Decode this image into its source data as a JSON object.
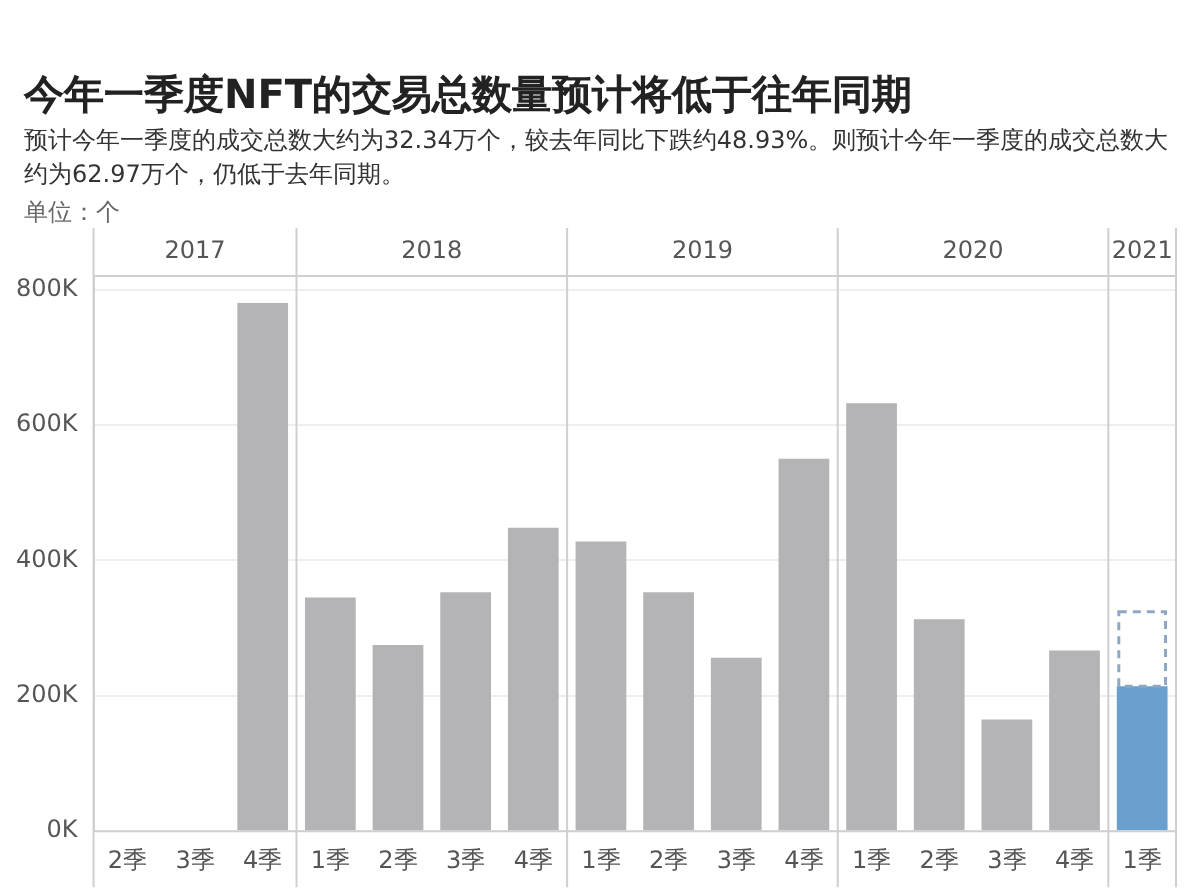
{
  "chart_data": {
    "type": "bar",
    "title": "今年一季度NFT的交易总数量预计将低于往年同期",
    "subtitle": "预计今年一季度的成交总数大约为32.34万个，较去年同比下跌约48.93%。则预计今年一季度的成交总数大约为62.97万个，仍低于去年同期。",
    "ylabel": "单位：个",
    "categories": [
      "2季",
      "3季",
      "4季",
      "1季",
      "2季",
      "3季",
      "4季",
      "1季",
      "2季",
      "3季",
      "4季",
      "1季",
      "2季",
      "3季",
      "4季",
      "1季"
    ],
    "annotations": [
      "2017",
      "2018",
      "2019",
      "2020",
      "2021"
    ],
    "stacked": true,
    "series": [
      {
        "colors": [
          "#b4b4b6",
          "#b4b4b6",
          "#b4b4b6",
          "#b4b4b6",
          "#b4b4b6",
          "#b4b4b6",
          "#b4b4b6",
          "#b4b4b6",
          "#b4b4b6",
          "#b4b4b6",
          "#b4b4b6",
          "#b4b4b6",
          "#b4b4b6",
          "#b4b4b6",
          "#b4b4b6",
          "#6a9fce"
        ],
        "values": [
          null,
          null,
          780000,
          345000,
          275000,
          353000,
          448000,
          428000,
          353000,
          256000,
          550000,
          632000,
          313000,
          165000,
          267000,
          214000
        ]
      },
      {
        "color": "#8ea8c3",
        "line_style": "dashed",
        "values": [
          null,
          null,
          null,
          null,
          null,
          null,
          null,
          null,
          null,
          null,
          null,
          null,
          null,
          null,
          null,
          110000
        ]
      }
    ],
    "ylim": [
      0,
      820000
    ],
    "yticks": [
      {
        "value": 0,
        "label": "0K"
      },
      {
        "value": 200000,
        "label": "200K"
      },
      {
        "value": 400000,
        "label": "400K"
      },
      {
        "value": 600000,
        "label": "600K"
      },
      {
        "value": 800000,
        "label": "800K"
      }
    ],
    "grid": "y",
    "legend": false
  }
}
